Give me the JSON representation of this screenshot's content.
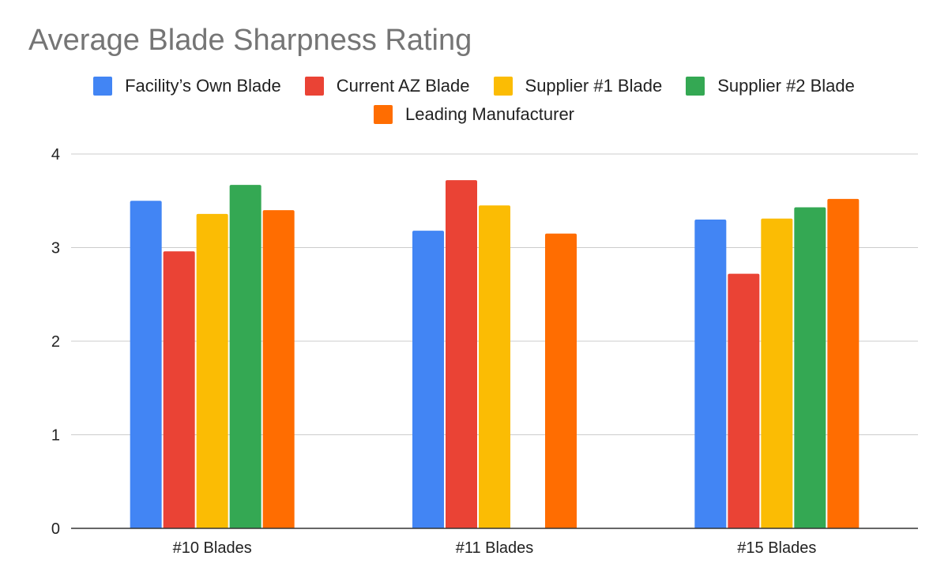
{
  "chart_data": {
    "type": "bar",
    "title": "Average Blade Sharpness Rating",
    "xlabel": "",
    "ylabel": "",
    "categories": [
      "#10 Blades",
      "#11 Blades",
      "#15 Blades"
    ],
    "ylim": [
      0,
      4
    ],
    "yticks": [
      0,
      1,
      2,
      3,
      4
    ],
    "grid": true,
    "legend_position": "top",
    "series": [
      {
        "name": "Facility’s Own Blade",
        "color": "#4285F4",
        "values": [
          3.5,
          3.18,
          3.3
        ]
      },
      {
        "name": "Current AZ Blade",
        "color": "#EA4335",
        "values": [
          2.96,
          3.72,
          2.72
        ]
      },
      {
        "name": "Supplier #1 Blade",
        "color": "#FBBC04",
        "values": [
          3.36,
          3.45,
          3.31
        ]
      },
      {
        "name": "Supplier #2 Blade",
        "color": "#34A853",
        "values": [
          3.67,
          null,
          3.43
        ]
      },
      {
        "name": "Leading Manufacturer",
        "color": "#FF6D01",
        "values": [
          3.4,
          3.15,
          3.52
        ]
      }
    ]
  }
}
